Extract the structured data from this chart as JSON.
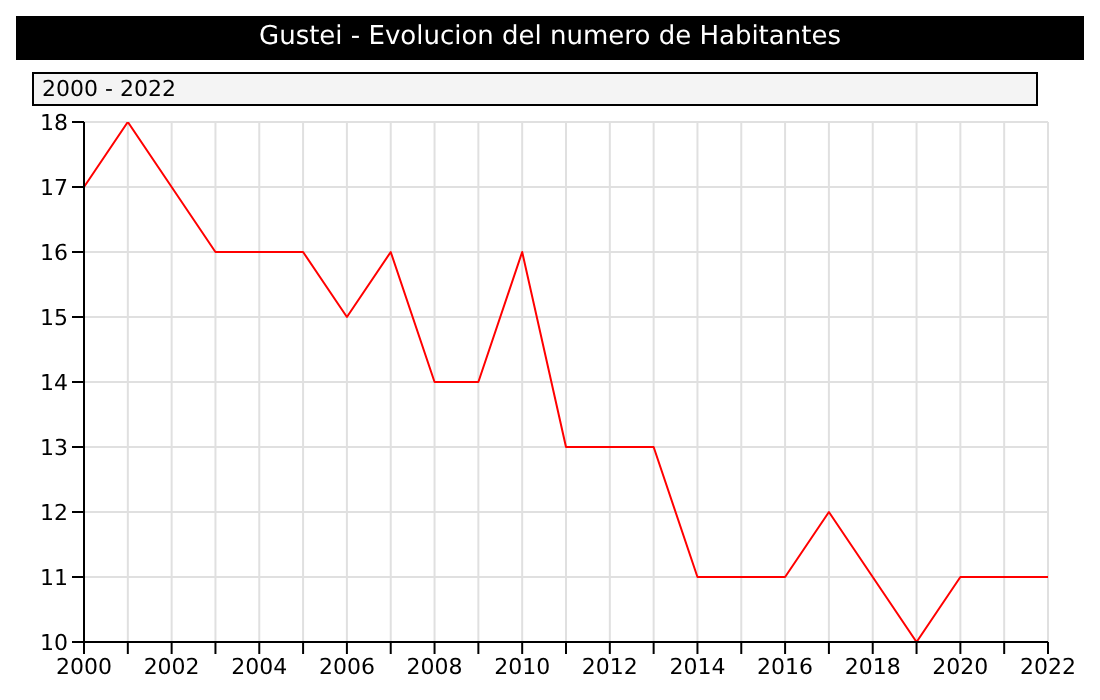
{
  "chart_data": {
    "type": "line",
    "title": "Gustei - Evolucion del numero de Habitantes",
    "subtitle": "2000 - 2022",
    "x": [
      2000,
      2001,
      2002,
      2003,
      2004,
      2005,
      2006,
      2007,
      2008,
      2009,
      2010,
      2011,
      2012,
      2013,
      2014,
      2015,
      2016,
      2017,
      2018,
      2019,
      2020,
      2021,
      2022
    ],
    "series": [
      {
        "color": "#ff0000",
        "values": [
          17,
          18,
          17,
          16,
          16,
          16,
          15,
          16,
          14,
          14,
          16,
          13,
          13,
          13,
          11,
          11,
          11,
          12,
          11,
          10,
          11,
          11,
          11
        ]
      }
    ],
    "xlim": [
      2000,
      2022
    ],
    "xticks": [
      2000,
      {
        "value": 2001,
        "label": null
      },
      2002,
      {
        "value": 2003,
        "label": null
      },
      2004,
      {
        "value": 2005,
        "label": null
      },
      2006,
      {
        "value": 2007,
        "label": null
      },
      2008,
      {
        "value": 2009,
        "label": null
      },
      2010,
      {
        "value": 2011,
        "label": null
      },
      2012,
      {
        "value": 2013,
        "label": null
      },
      2014,
      {
        "value": 2015,
        "label": null
      },
      2016,
      {
        "value": 2017,
        "label": null
      },
      2018,
      {
        "value": 2019,
        "label": null
      },
      2020,
      {
        "value": 2021,
        "label": null
      },
      2022
    ],
    "ylim": [
      10,
      18
    ],
    "yticks": [
      10,
      11,
      12,
      13,
      14,
      15,
      16,
      17,
      18
    ],
    "grid": true,
    "marker": "none",
    "line_style": "solid"
  }
}
